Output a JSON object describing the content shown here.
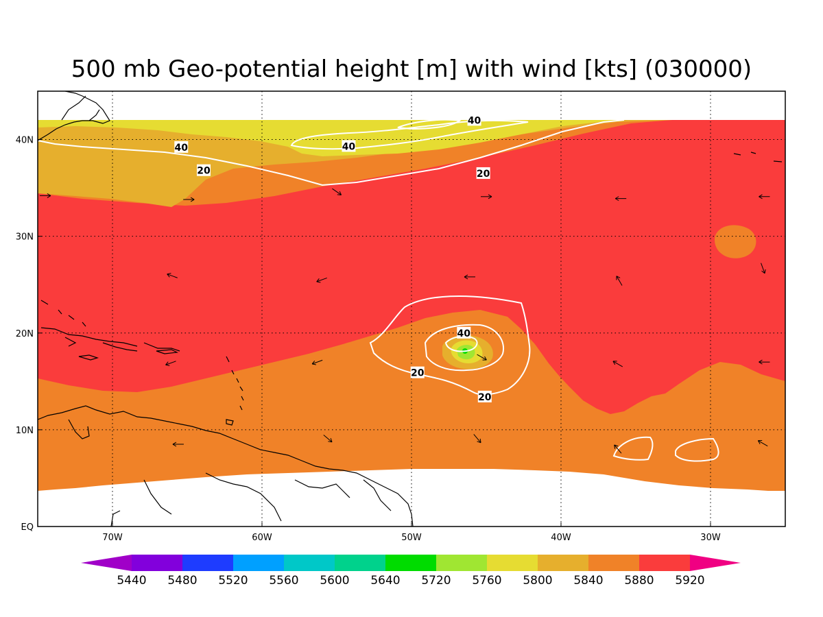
{
  "title": "500 mb Geo-potential height [m] with wind [kts] (030000)",
  "axes": {
    "lon_labels": [
      "70W",
      "60W",
      "50W",
      "40W",
      "30W"
    ],
    "lat_labels": [
      "EQ",
      "10N",
      "20N",
      "30N",
      "40N"
    ],
    "lon_values": [
      -70,
      -60,
      -50,
      -40,
      -30
    ],
    "lat_values": [
      0,
      10,
      20,
      30,
      40
    ],
    "lon_range": [
      -75,
      -25
    ],
    "lat_range": [
      0,
      45
    ],
    "grid": "dotted"
  },
  "colorbar": {
    "labels": [
      "5440",
      "5480",
      "5520",
      "5560",
      "5600",
      "5640",
      "5720",
      "5760",
      "5800",
      "5840",
      "5880",
      "5920"
    ],
    "colors": [
      "#a000c8",
      "#8200dc",
      "#1e3cff",
      "#00a0ff",
      "#00c8c8",
      "#00d28c",
      "#00dc00",
      "#a0e632",
      "#e6dc32",
      "#e6af2d",
      "#f08228",
      "#fa3c3c",
      "#f00082"
    ]
  },
  "map_colors": {
    "h5800": "#e6dc32",
    "h5840": "#e6af2d",
    "h5880": "#f08228",
    "h5920": "#fa3c3c",
    "h5760": "#a0e632",
    "h5720": "#00dc00",
    "contour": "#ffffff",
    "coast": "#000000"
  },
  "contour_labels": [
    {
      "text": "40",
      "lon": -45.8,
      "lat": 42.0
    },
    {
      "text": "40",
      "lon": -65.4,
      "lat": 39.2
    },
    {
      "text": "40",
      "lon": -54.2,
      "lat": 39.3
    },
    {
      "text": "20",
      "lon": -63.9,
      "lat": 36.8
    },
    {
      "text": "20",
      "lon": -45.2,
      "lat": 36.5
    },
    {
      "text": "40",
      "lon": -46.5,
      "lat": 20.0
    },
    {
      "text": "20",
      "lon": -49.6,
      "lat": 15.9
    },
    {
      "text": "20",
      "lon": -45.1,
      "lat": 13.4
    }
  ],
  "wind_arrows": [
    {
      "lon": -64.9,
      "lat": 33.8,
      "dir": 0
    },
    {
      "lon": -55.0,
      "lat": 34.6,
      "dir": -35
    },
    {
      "lon": -45.0,
      "lat": 34.1,
      "dir": 0
    },
    {
      "lon": -36.0,
      "lat": 33.9,
      "dir": 180
    },
    {
      "lon": -26.4,
      "lat": 34.1,
      "dir": 180
    },
    {
      "lon": -74.5,
      "lat": 34.2,
      "dir": 0
    },
    {
      "lon": -66.0,
      "lat": 25.9,
      "dir": 160
    },
    {
      "lon": -56.0,
      "lat": 25.5,
      "dir": 200
    },
    {
      "lon": -46.1,
      "lat": 25.8,
      "dir": 180
    },
    {
      "lon": -36.1,
      "lat": 25.4,
      "dir": 120
    },
    {
      "lon": -26.5,
      "lat": 26.7,
      "dir": -70
    },
    {
      "lon": -66.1,
      "lat": 16.9,
      "dir": 200
    },
    {
      "lon": -56.3,
      "lat": 17.0,
      "dir": 200
    },
    {
      "lon": -45.3,
      "lat": 17.5,
      "dir": -30
    },
    {
      "lon": -36.2,
      "lat": 16.8,
      "dir": 150
    },
    {
      "lon": -26.4,
      "lat": 17.0,
      "dir": 180
    },
    {
      "lon": -65.6,
      "lat": 8.5,
      "dir": 180
    },
    {
      "lon": -55.6,
      "lat": 9.1,
      "dir": -40
    },
    {
      "lon": -45.6,
      "lat": 9.1,
      "dir": -50
    },
    {
      "lon": -36.2,
      "lat": 8.0,
      "dir": 130
    },
    {
      "lon": -26.5,
      "lat": 8.6,
      "dir": 150
    }
  ]
}
